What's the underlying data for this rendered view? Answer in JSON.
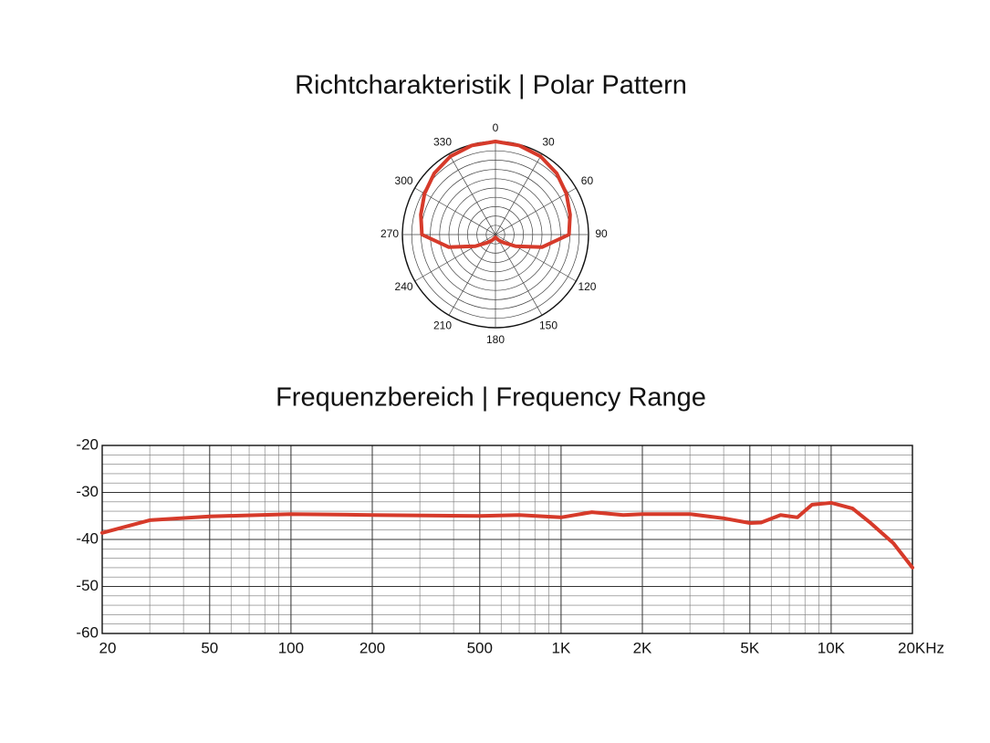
{
  "chart_data": [
    {
      "type": "polar",
      "title": "Richtcharakteristik | Polar Pattern",
      "angles": [
        0,
        15,
        30,
        45,
        60,
        75,
        90,
        105,
        120,
        135,
        150,
        165,
        180,
        195,
        210,
        225,
        240,
        255,
        270,
        285,
        300,
        315,
        330,
        345
      ],
      "values": [
        1.0,
        0.99,
        0.97,
        0.93,
        0.88,
        0.83,
        0.79,
        0.52,
        0.25,
        0.12,
        0.07,
        0.04,
        0.03,
        0.04,
        0.07,
        0.12,
        0.25,
        0.52,
        0.79,
        0.83,
        0.88,
        0.93,
        0.97,
        0.99
      ],
      "color": "#d63a2a",
      "rlim": [
        0,
        1
      ],
      "rticks": [
        0.1,
        0.2,
        0.3,
        0.4,
        0.5,
        0.6,
        0.7,
        0.8,
        0.9,
        1.0
      ],
      "angle_ticks": [
        0,
        30,
        60,
        90,
        120,
        150,
        180,
        210,
        240,
        270,
        300,
        330
      ]
    },
    {
      "type": "line",
      "title": "Frequenzbereich | Frequency Range",
      "log_x": true,
      "grid": true,
      "x": [
        20,
        30,
        50,
        100,
        200,
        500,
        700,
        1000,
        1300,
        1700,
        2000,
        3000,
        4000,
        5000,
        5500,
        6500,
        7500,
        8500,
        10000,
        12000,
        14000,
        17000,
        20000
      ],
      "values": [
        -38.6,
        -35.9,
        -35.1,
        -34.6,
        -34.8,
        -35,
        -34.8,
        -35.3,
        -34.2,
        -34.8,
        -34.6,
        -34.6,
        -35.5,
        -36.5,
        -36.4,
        -34.8,
        -35.3,
        -32.6,
        -32.2,
        -33.4,
        -36.5,
        -40.8,
        -46
      ],
      "color": "#d63a2a",
      "xlim": [
        20,
        20000
      ],
      "xticks": [
        20,
        50,
        100,
        200,
        500,
        {
          "value": 1000,
          "label": "1K"
        },
        {
          "value": 2000,
          "label": "2K"
        },
        {
          "value": 5000,
          "label": "5K"
        },
        {
          "value": 10000,
          "label": "10K"
        },
        {
          "value": 20000,
          "label": "20KHz"
        }
      ],
      "ylim": [
        -60,
        -20
      ],
      "yticks": [
        -20,
        -30,
        -40,
        -50,
        -60
      ]
    }
  ]
}
